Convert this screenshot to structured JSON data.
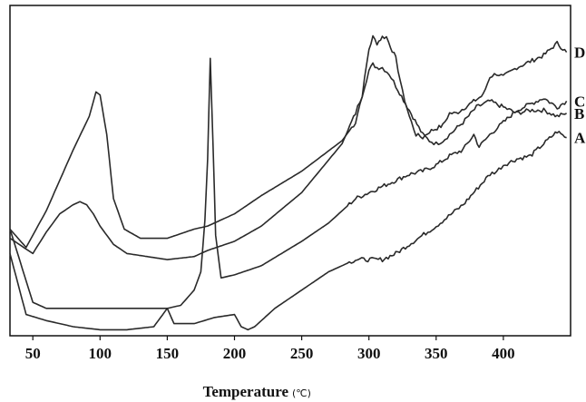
{
  "chart_data": {
    "type": "line",
    "title": "",
    "xlabel": "Temperature",
    "xlabel_unit": "(℃)",
    "ylabel": "",
    "xlim": [
      33,
      450
    ],
    "ylim": [
      0,
      100
    ],
    "x_ticks": [
      50,
      100,
      150,
      200,
      250,
      300,
      350,
      400
    ],
    "x_tick_labels": [
      "50",
      "100",
      "150",
      "200",
      "250",
      "300",
      "350",
      "400"
    ],
    "grid": false,
    "legend": "curve labels at right edge",
    "colors": {
      "line": "#2a2a2a",
      "frame": "#111111"
    },
    "series": [
      {
        "name": "D",
        "x": [
          33,
          45,
          60,
          80,
          92,
          97,
          100,
          105,
          110,
          118,
          130,
          150,
          170,
          180,
          200,
          220,
          250,
          280,
          290,
          295,
          300,
          303,
          306,
          310,
          313,
          316,
          320,
          325,
          330,
          335,
          340,
          345,
          355,
          360,
          365,
          375,
          385,
          390,
          395,
          400,
          410,
          420,
          430,
          440,
          447
        ],
        "y": [
          32,
          26,
          38,
          58,
          69,
          77,
          76,
          63,
          42,
          32,
          29,
          29,
          32,
          33,
          37,
          43,
          51,
          61,
          67,
          76,
          91,
          95,
          93,
          95,
          95,
          92,
          88,
          77,
          69,
          63,
          62,
          64,
          66,
          70,
          70,
          73,
          76,
          82,
          83,
          82,
          85,
          87,
          89,
          93,
          90
        ]
      },
      {
        "name": "B",
        "x": [
          33,
          50,
          60,
          70,
          80,
          85,
          90,
          95,
          100,
          110,
          120,
          150,
          170,
          180,
          200,
          220,
          250,
          280,
          290,
          295,
          300,
          303,
          306,
          310,
          315,
          320,
          330,
          340,
          345,
          350,
          355,
          360,
          370,
          380,
          390,
          400,
          410,
          420,
          430,
          440,
          447
        ],
        "y": [
          29,
          24,
          31,
          37,
          40,
          41,
          40,
          37,
          33,
          27,
          24,
          22,
          23,
          25,
          28,
          33,
          44,
          60,
          70,
          76,
          84,
          86,
          85,
          85,
          83,
          79,
          71,
          63,
          61,
          60,
          61,
          63,
          67,
          72,
          74,
          72,
          70,
          71,
          71,
          69,
          70
        ]
      },
      {
        "name": "C",
        "x": [
          33,
          50,
          60,
          80,
          100,
          120,
          140,
          150,
          160,
          170,
          175,
          178,
          180,
          182,
          184,
          186,
          190,
          200,
          220,
          250,
          270,
          290,
          300,
          310,
          320,
          330,
          340,
          350,
          360,
          370,
          378,
          382,
          390,
          400,
          410,
          420,
          430,
          440,
          447
        ],
        "y": [
          32,
          8,
          6,
          6,
          6,
          6,
          6,
          6,
          7,
          12,
          18,
          35,
          55,
          88,
          60,
          30,
          16,
          17,
          20,
          28,
          34,
          42,
          44,
          46,
          48,
          50,
          51,
          53,
          56,
          58,
          63,
          59,
          63,
          67,
          71,
          73,
          75,
          72,
          74
        ]
      },
      {
        "name": "A",
        "x": [
          33,
          45,
          60,
          80,
          100,
          120,
          140,
          145,
          150,
          155,
          170,
          185,
          200,
          205,
          210,
          215,
          220,
          230,
          250,
          270,
          290,
          310,
          320,
          330,
          350,
          370,
          380,
          390,
          395,
          400,
          410,
          420,
          430,
          440,
          447
        ],
        "y": [
          24,
          4,
          2,
          0,
          -1,
          -1,
          0,
          3,
          6,
          1,
          1,
          3,
          4,
          0,
          -1,
          0,
          2,
          6,
          12,
          18,
          22,
          22,
          24,
          27,
          33,
          40,
          45,
          50,
          51,
          53,
          55,
          56,
          60,
          64,
          62
        ]
      }
    ]
  }
}
